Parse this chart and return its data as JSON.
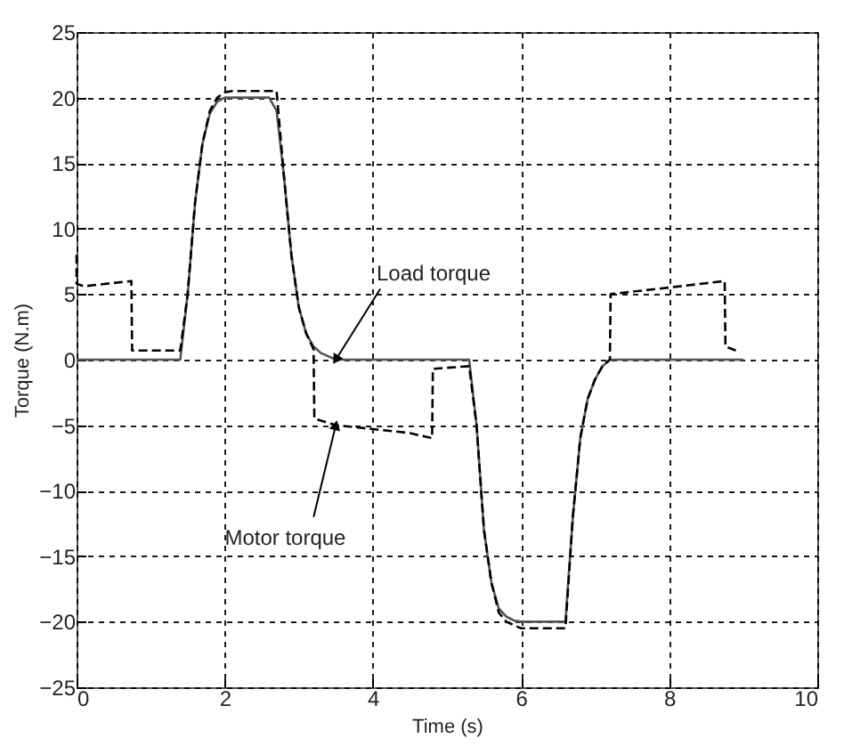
{
  "chart_data": {
    "type": "line",
    "xlabel": "Time (s)",
    "ylabel": "Torque (N.m)",
    "xlim": [
      0,
      10
    ],
    "xticks": [
      0,
      2,
      4,
      6,
      8,
      10
    ],
    "ylim": [
      -25,
      25
    ],
    "yticks": [
      -25,
      -20,
      -15,
      -10,
      -5,
      0,
      5,
      10,
      15,
      20,
      25
    ],
    "grid": true,
    "series": [
      {
        "color": "#555555",
        "line_style": "solid",
        "x": [
          0,
          1.4,
          1.5,
          1.6,
          1.7,
          1.8,
          1.9,
          2.0,
          2.1,
          2.6,
          2.7,
          2.8,
          2.9,
          3.0,
          3.1,
          3.2,
          3.3,
          3.5,
          5.3,
          5.4,
          5.5,
          5.6,
          5.7,
          5.8,
          5.9,
          6.0,
          6.1,
          6.6,
          6.7,
          6.8,
          6.9,
          7.0,
          7.1,
          7.2,
          9.0
        ],
        "values": [
          0,
          0,
          5,
          12,
          16.5,
          18.8,
          19.7,
          20,
          20,
          20,
          19,
          14,
          8,
          4,
          2,
          1,
          0.5,
          0,
          0,
          -5,
          -13,
          -17,
          -19,
          -19.6,
          -19.9,
          -20,
          -20,
          -20,
          -12,
          -6,
          -3,
          -1.5,
          -0.5,
          0,
          0
        ]
      },
      {
        "color": "#000000",
        "line_style": "dashed",
        "x": [
          0,
          0,
          0.1,
          0.74,
          0.75,
          1.4,
          1.5,
          1.6,
          1.7,
          1.8,
          1.9,
          2.0,
          2.1,
          2.7,
          2.8,
          2.9,
          3.0,
          3.1,
          3.2,
          3.21,
          3.5,
          4.0,
          4.5,
          4.8,
          4.81,
          5.3,
          5.4,
          5.5,
          5.6,
          5.7,
          5.8,
          6.0,
          6.6,
          6.7,
          6.8,
          6.9,
          7.0,
          7.1,
          7.2,
          7.21,
          8.0,
          8.75,
          8.76,
          8.9
        ],
        "values": [
          8,
          5.8,
          5.6,
          6,
          0.7,
          0.7,
          5,
          12,
          16.5,
          19,
          20,
          20.4,
          20.5,
          20.5,
          14,
          8,
          4,
          2,
          0.8,
          -4.5,
          -5,
          -5.3,
          -5.6,
          -6,
          -0.7,
          -0.5,
          -5,
          -13,
          -17,
          -19.3,
          -20,
          -20.5,
          -20.5,
          -12,
          -6,
          -3,
          -1.5,
          -0.5,
          0,
          5,
          5.5,
          6,
          1,
          0.7
        ]
      }
    ],
    "annotations": [
      {
        "text": "Load torque",
        "x": 3.5,
        "y": 0
      },
      {
        "text": "Motor torque",
        "x": 3.5,
        "y": -5
      }
    ]
  }
}
